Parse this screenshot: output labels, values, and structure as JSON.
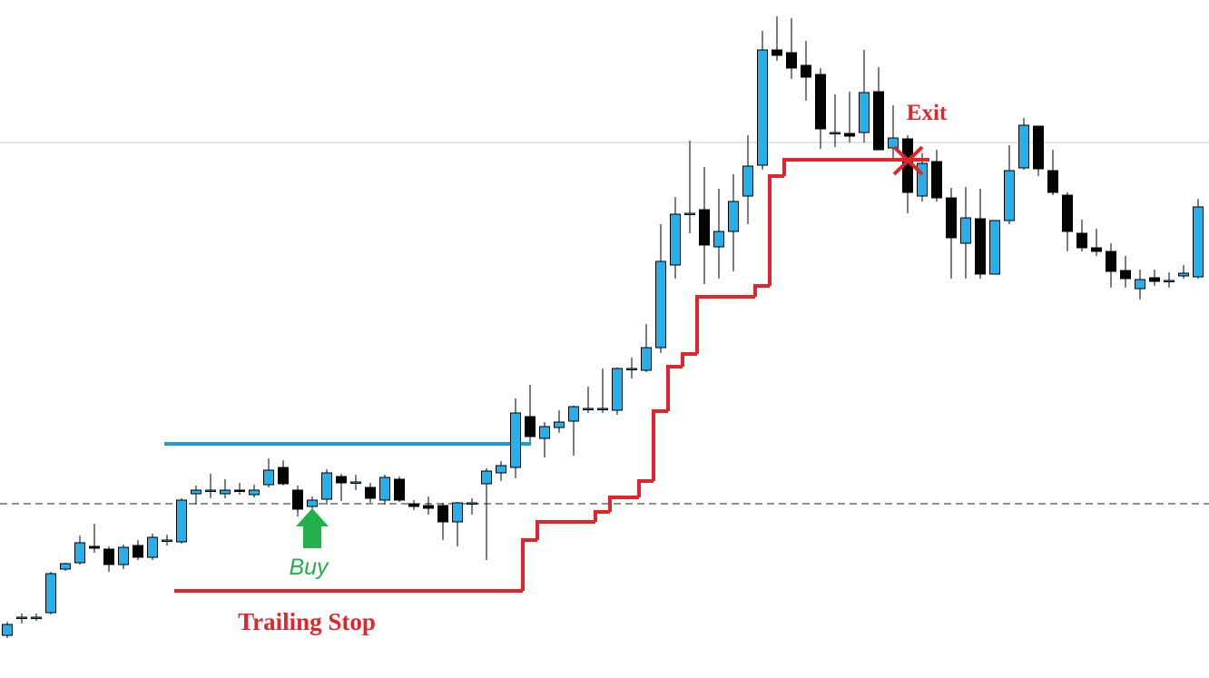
{
  "chart_data": {
    "type": "candlestick",
    "ylim": [
      0,
      747
    ],
    "up_color": "#29aee8",
    "down_color": "#000000",
    "open": [
      47,
      67,
      67,
      72,
      120,
      127,
      145,
      142,
      125,
      146,
      133,
      152,
      150,
      203,
      207,
      203,
      207,
      202,
      213,
      232,
      207,
      189,
      197,
      222,
      216,
      210,
      196,
      219,
      192,
      190,
      190,
      172,
      193,
      214,
      226,
      232,
      288,
      264,
      276,
      283,
      297,
      297,
      295,
      341,
      339,
      364,
      455,
      512,
      516,
      475,
      492,
      531,
      565,
      692,
      689,
      675,
      665,
      601,
      600,
      601,
      646,
      584,
      594,
      531,
      569,
      529,
      479,
      506,
      445,
      504,
      562,
      608,
      559,
      532,
      490,
      474,
      470,
      449,
      429,
      441,
      438,
      443,
      442
    ],
    "high": [
      62,
      71,
      71,
      117,
      127,
      157,
      170,
      145,
      147,
      152,
      159,
      158,
      198,
      212,
      225,
      219,
      215,
      213,
      242,
      240,
      212,
      200,
      230,
      225,
      224,
      215,
      224,
      222,
      196,
      200,
      193,
      194,
      198,
      231,
      239,
      308,
      323,
      282,
      295,
      300,
      321,
      341,
      342,
      353,
      390,
      500,
      530,
      592,
      563,
      539,
      555,
      598,
      713,
      729,
      727,
      702,
      672,
      643,
      646,
      692,
      673,
      631,
      598,
      578,
      582,
      540,
      541,
      539,
      502,
      587,
      617,
      608,
      582,
      535,
      505,
      495,
      479,
      465,
      450,
      450,
      447,
      455,
      528
    ],
    "low": [
      44,
      60,
      63,
      70,
      118,
      125,
      138,
      117,
      120,
      130,
      130,
      146,
      148,
      191,
      198,
      198,
      202,
      199,
      210,
      212,
      178,
      180,
      191,
      195,
      207,
      193,
      191,
      194,
      185,
      180,
      152,
      145,
      180,
      130,
      217,
      220,
      260,
      243,
      270,
      245,
      292,
      292,
      290,
      330,
      337,
      358,
      440,
      490,
      434,
      440,
      448,
      500,
      560,
      680,
      660,
      636,
      583,
      585,
      590,
      590,
      582,
      570,
      512,
      525,
      525,
      440,
      440,
      440,
      445,
      500,
      560,
      553,
      532,
      470,
      470,
      465,
      430,
      430,
      417,
      432,
      430,
      440,
      440
    ],
    "close": [
      59,
      67,
      67,
      115,
      126,
      149,
      143,
      125,
      144,
      133,
      155,
      152,
      196,
      207,
      207,
      207,
      206,
      207,
      229,
      214,
      186,
      196,
      226,
      215,
      216,
      198,
      221,
      196,
      189,
      187,
      172,
      193,
      193,
      228,
      234,
      292,
      266,
      277,
      282,
      299,
      297,
      297,
      341,
      341,
      364,
      459,
      511,
      512,
      477,
      492,
      525,
      564,
      692,
      686,
      672,
      662,
      605,
      601,
      597,
      645,
      582,
      595,
      535,
      567,
      529,
      485,
      507,
      445,
      504,
      559,
      609,
      561,
      535,
      492,
      474,
      470,
      448,
      440,
      439,
      437,
      438,
      446,
      519
    ],
    "trailing_stop": {
      "name": "Trailing Stop",
      "color": "#e0262b",
      "values": [
        null,
        null,
        null,
        null,
        null,
        null,
        null,
        null,
        null,
        null,
        null,
        null,
        96,
        96,
        96,
        96,
        96,
        96,
        96,
        96,
        96,
        96,
        96,
        96,
        96,
        96,
        96,
        96,
        96,
        96,
        96,
        96,
        96,
        96,
        96,
        96,
        152,
        172,
        172,
        172,
        172,
        183,
        199,
        199,
        217,
        294,
        343,
        357,
        420,
        420,
        420,
        420,
        432,
        553,
        571,
        571,
        571,
        571,
        571,
        571,
        571,
        571,
        571,
        571,
        null,
        null,
        null,
        null,
        null,
        null,
        null,
        null,
        null,
        null,
        null,
        null,
        null,
        null,
        null,
        null,
        null,
        null,
        null
      ]
    },
    "levels": [
      {
        "value": 258,
        "color": "#1b9cd8",
        "from": 11,
        "to": 36
      },
      {
        "value": 590,
        "color": "#c8c8c8"
      },
      {
        "value": 192,
        "color": "#222222",
        "dashed": true
      }
    ],
    "exit_label": "Exit",
    "buy_label": "Buy"
  }
}
